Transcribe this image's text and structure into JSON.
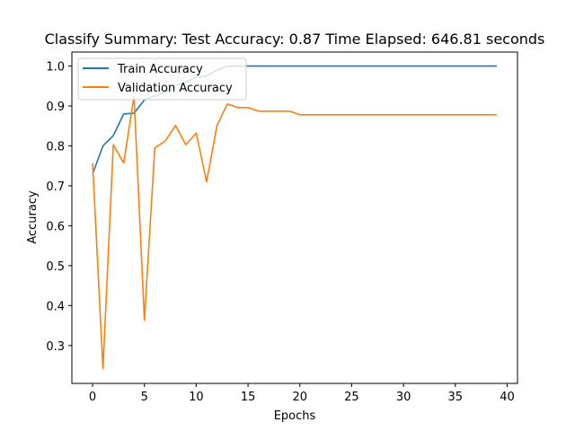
{
  "chart_data": {
    "type": "line",
    "title": "Classify Summary: Test Accuracy: 0.87 Time Elapsed: 646.81 seconds",
    "xlabel": "Epochs",
    "ylabel": "Accuracy",
    "xlim": [
      -2,
      41
    ],
    "ylim": [
      0.205,
      1.035
    ],
    "xticks": [
      0,
      5,
      10,
      15,
      20,
      25,
      30,
      35,
      40
    ],
    "yticks": [
      0.3,
      0.4,
      0.5,
      0.6,
      0.7,
      0.8,
      0.9,
      1.0
    ],
    "grid": false,
    "legend_position": "top-left",
    "x": [
      0,
      1,
      2,
      3,
      4,
      5,
      6,
      7,
      8,
      9,
      10,
      11,
      12,
      13,
      14,
      15,
      16,
      17,
      18,
      19,
      20,
      21,
      22,
      23,
      24,
      25,
      26,
      27,
      28,
      29,
      30,
      31,
      32,
      33,
      34,
      35,
      36,
      37,
      38,
      39
    ],
    "series": [
      {
        "name": "Train Accuracy",
        "color": "#1f77b4",
        "values": [
          0.73,
          0.8,
          0.826,
          0.88,
          0.882,
          0.915,
          0.925,
          0.935,
          0.95,
          0.96,
          0.972,
          0.975,
          0.99,
          1.0,
          1.0,
          1.0,
          1.0,
          1.0,
          1.0,
          1.0,
          1.0,
          1.0,
          1.0,
          1.0,
          1.0,
          1.0,
          1.0,
          1.0,
          1.0,
          1.0,
          1.0,
          1.0,
          1.0,
          1.0,
          1.0,
          1.0,
          1.0,
          1.0,
          1.0,
          1.0
        ]
      },
      {
        "name": "Validation Accuracy",
        "color": "#ff7f0e",
        "values": [
          0.757,
          0.242,
          0.803,
          0.757,
          0.925,
          0.363,
          0.795,
          0.812,
          0.851,
          0.803,
          0.832,
          0.71,
          0.851,
          0.905,
          0.896,
          0.896,
          0.887,
          0.887,
          0.887,
          0.887,
          0.878,
          0.878,
          0.878,
          0.878,
          0.878,
          0.878,
          0.878,
          0.878,
          0.878,
          0.878,
          0.878,
          0.878,
          0.878,
          0.878,
          0.878,
          0.878,
          0.878,
          0.878,
          0.878,
          0.878
        ]
      }
    ]
  }
}
